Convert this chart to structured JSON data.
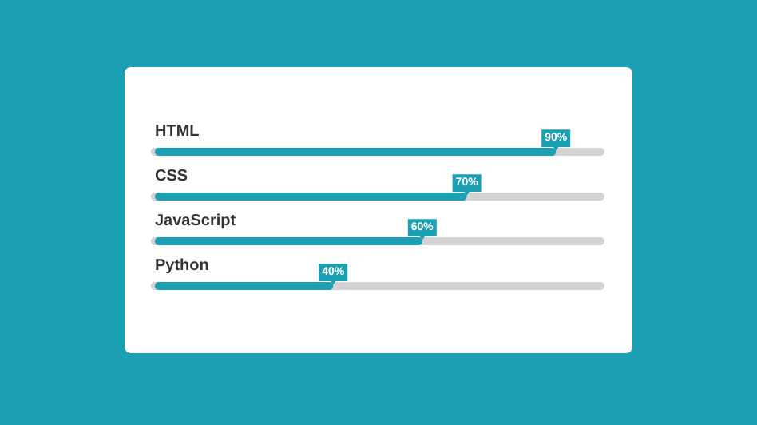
{
  "chart_data": {
    "type": "bar",
    "orientation": "horizontal",
    "categories": [
      "HTML",
      "CSS",
      "JavaScript",
      "Python"
    ],
    "values": [
      90,
      70,
      60,
      40
    ],
    "value_labels": [
      "90%",
      "70%",
      "60%",
      "40%"
    ],
    "color": "#1a9fb3",
    "xlim": [
      0,
      100
    ]
  }
}
